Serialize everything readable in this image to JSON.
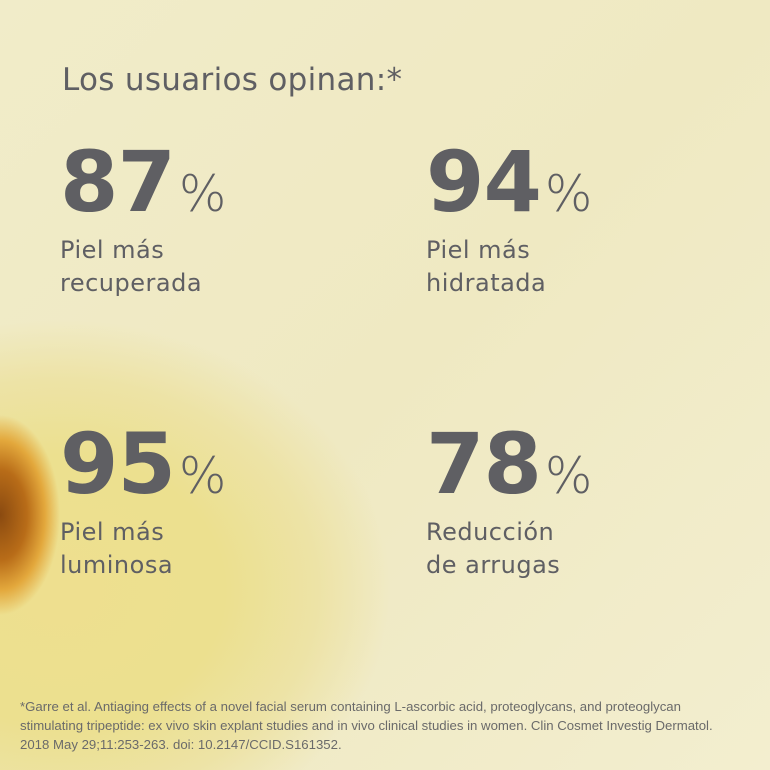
{
  "title": "Los usuarios opinan:*",
  "stats": [
    {
      "value": "87",
      "unit": "%",
      "line1": "Piel más",
      "line2": "recuperada"
    },
    {
      "value": "94",
      "unit": "%",
      "line1": "Piel más",
      "line2": "hidratada"
    },
    {
      "value": "95",
      "unit": "%",
      "line1": "Piel más",
      "line2": "luminosa"
    },
    {
      "value": "78",
      "unit": "%",
      "line1": "Reducción",
      "line2": "de arrugas"
    }
  ],
  "footnote": "*Garre et al. Antiaging effects of a novel facial serum containing L-ascorbic acid, proteoglycans, and proteoglycan stimulating tripeptide: ex vivo skin explant studies and in vivo clinical studies in women. Clin Cosmet Investig Dermatol. 2018 May 29;11:253-263. doi: 10.2147/CCID.S161352.",
  "colors": {
    "text": "#5f5f63",
    "background": "#efe9c4",
    "serum": "#e3c96a"
  }
}
